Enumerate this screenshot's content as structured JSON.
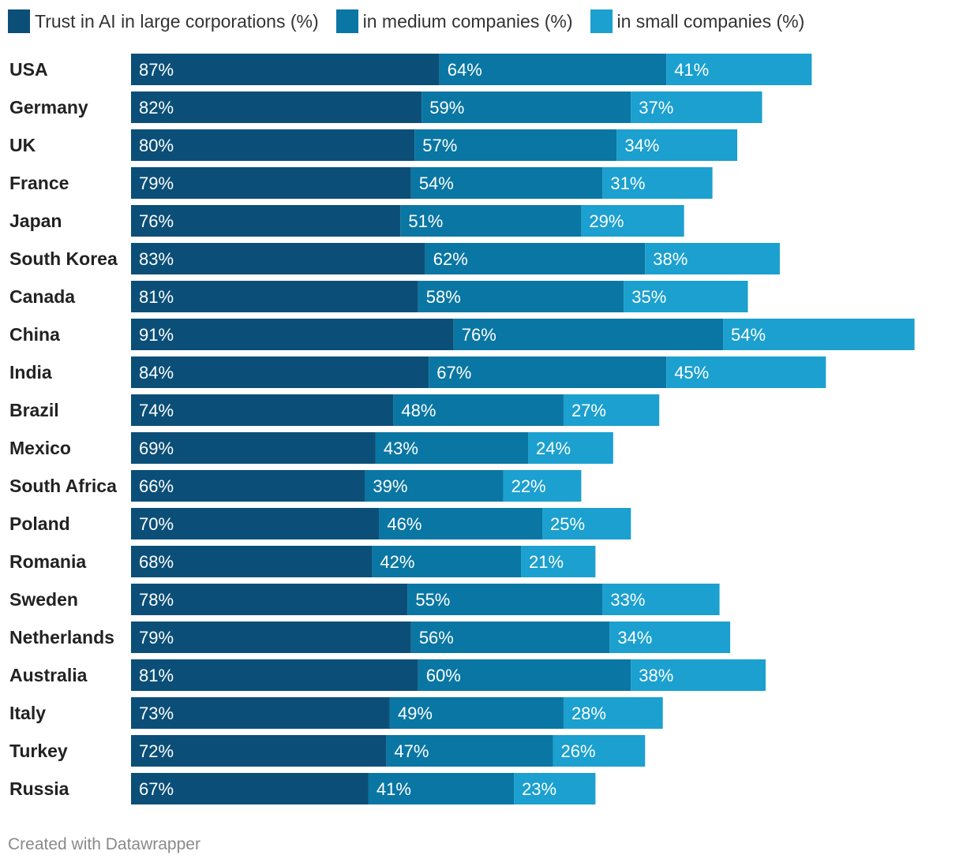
{
  "legend": [
    {
      "label": "Trust in AI in large corporations (%)",
      "color": "#0b4f78"
    },
    {
      "label": "in medium companies (%)",
      "color": "#0a76a3"
    },
    {
      "label": "in small companies (%)",
      "color": "#1ba0cf"
    }
  ],
  "footer": {
    "credit": "Created with Datawrapper"
  },
  "chart_data": {
    "type": "bar",
    "orientation": "horizontal",
    "stacked": true,
    "title": "",
    "xlabel": "",
    "ylabel": "",
    "grid": false,
    "legend_position": "top",
    "xlim": [
      0,
      232
    ],
    "categories": [
      "USA",
      "Germany",
      "UK",
      "France",
      "Japan",
      "South Korea",
      "Canada",
      "China",
      "India",
      "Brazil",
      "Mexico",
      "South Africa",
      "Poland",
      "Romania",
      "Sweden",
      "Netherlands",
      "Australia",
      "Italy",
      "Turkey",
      "Russia"
    ],
    "series": [
      {
        "name": "Trust in AI in large corporations (%)",
        "color": "#0b4f78",
        "values": [
          87,
          82,
          80,
          79,
          76,
          83,
          81,
          91,
          84,
          74,
          69,
          66,
          70,
          68,
          78,
          79,
          81,
          73,
          72,
          67
        ]
      },
      {
        "name": "in medium companies (%)",
        "color": "#0a76a3",
        "values": [
          64,
          59,
          57,
          54,
          51,
          62,
          58,
          76,
          67,
          48,
          43,
          39,
          46,
          42,
          55,
          56,
          60,
          49,
          47,
          41
        ]
      },
      {
        "name": "in small companies (%)",
        "color": "#1ba0cf",
        "values": [
          41,
          37,
          34,
          31,
          29,
          38,
          35,
          54,
          45,
          27,
          24,
          22,
          25,
          21,
          33,
          34,
          38,
          28,
          26,
          23
        ]
      }
    ]
  }
}
